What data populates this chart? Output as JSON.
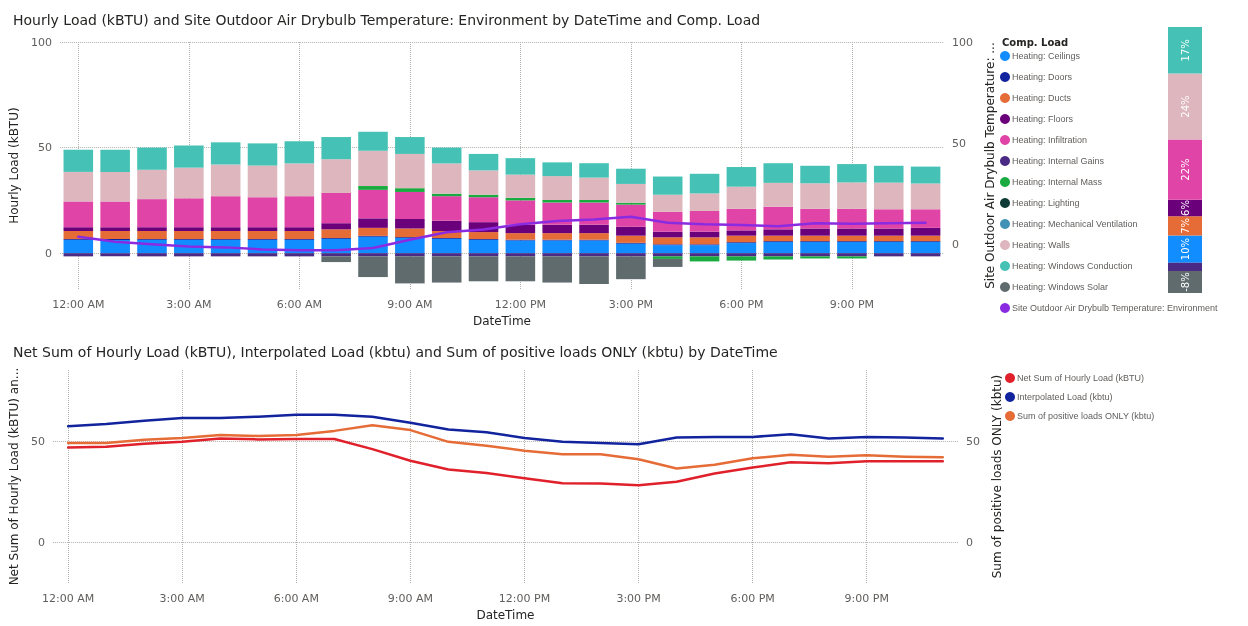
{
  "chart_data": [
    {
      "type": "bar",
      "title": "Hourly Load (kBTU) and Site Outdoor Air Drybulb Temperature: Environment by DateTime and Comp. Load",
      "xlabel": "DateTime",
      "ylabel": "Hourly Load (kBTU)",
      "y2label": "Site Outdoor Air Drybulb Temperature: ...",
      "legend_title": "Comp. Load",
      "stacked": true,
      "grid": true,
      "legend": "right",
      "marker": "none",
      "x": [
        0,
        1,
        2,
        3,
        4,
        5,
        6,
        7,
        8,
        9,
        10,
        11,
        12,
        13,
        14,
        15,
        16,
        17,
        18,
        19,
        20,
        21,
        22,
        23
      ],
      "xlim": [
        -0.5,
        23.5
      ],
      "xticks": [
        {
          "value": 0,
          "label": "12:00 AM"
        },
        {
          "value": 3,
          "label": "3:00 AM"
        },
        {
          "value": 6,
          "label": "6:00 AM"
        },
        {
          "value": 9,
          "label": "9:00 AM"
        },
        {
          "value": 12,
          "label": "12:00 PM"
        },
        {
          "value": 15,
          "label": "3:00 PM"
        },
        {
          "value": 18,
          "label": "6:00 PM"
        },
        {
          "value": 21,
          "label": "9:00 PM"
        }
      ],
      "ylim": [
        -17,
        100
      ],
      "yticks": [
        0,
        50,
        100
      ],
      "y2lim": [
        -22,
        100
      ],
      "y2ticks": [
        0,
        50,
        100
      ],
      "series": [
        {
          "name": "Heating: Ceilings",
          "color": "#118dff",
          "values": [
            6.3,
            6.3,
            6.3,
            6.3,
            6.3,
            6.3,
            6.3,
            6.8,
            7.8,
            7.2,
            6.8,
            6.3,
            6,
            6,
            6,
            4.5,
            3.8,
            3.8,
            4.8,
            5.3,
            5.3,
            5.3,
            5.3,
            5.3
          ]
        },
        {
          "name": "Heating: Doors",
          "color": "#12239e",
          "values": [
            0.4,
            0.4,
            0.4,
            0.4,
            0.4,
            0.4,
            0.4,
            0.4,
            0.4,
            0.4,
            0.4,
            0.4,
            0.4,
            0.4,
            0.4,
            0.4,
            0.4,
            0.4,
            0.4,
            0.4,
            0.4,
            0.4,
            0.4,
            0.4
          ]
        },
        {
          "name": "Heating: Ducts",
          "color": "#e66c37",
          "values": [
            3.8,
            3.8,
            3.8,
            3.8,
            3.8,
            3.8,
            3.8,
            4.1,
            3.8,
            4.1,
            3.3,
            3.3,
            3.1,
            3.1,
            3.1,
            3.4,
            3.3,
            3.3,
            3.1,
            2.6,
            2.6,
            2.6,
            2.6,
            2.6
          ]
        },
        {
          "name": "Heating: Floors",
          "color": "#6b007b",
          "values": [
            1.8,
            1.8,
            1.8,
            1.8,
            1.8,
            1.8,
            1.8,
            2.9,
            4.5,
            4.5,
            4.9,
            4.7,
            4,
            4,
            4,
            4.2,
            2.7,
            2.7,
            2.5,
            3,
            3.4,
            3.4,
            3.4,
            3.7
          ]
        },
        {
          "name": "Heating: Infiltration",
          "color": "#e044a7",
          "values": [
            12.2,
            12.2,
            13.3,
            13.7,
            14.7,
            14.2,
            14.7,
            14.3,
            13.5,
            12.8,
            11.6,
            11.8,
            11.5,
            10.5,
            10.5,
            10.5,
            9.4,
            9.8,
            10.2,
            10.7,
            9.3,
            9.3,
            9.1,
            8.8
          ]
        },
        {
          "name": "Heating: Internal Gains",
          "color": "#4a2a85",
          "values": [
            -1.5,
            -1.5,
            -1.5,
            -1.5,
            -1.5,
            -1.5,
            -1.5,
            -1.5,
            -1.5,
            -1.5,
            -1.5,
            -1.5,
            -1.5,
            -1.5,
            -1.5,
            -1.5,
            -1.5,
            -1.5,
            -1.5,
            -1.5,
            -1.5,
            -1.5,
            -1.5,
            -1.5
          ]
        },
        {
          "name": "Heating: Internal Mass",
          "color": "#1aab40",
          "values": [
            null,
            null,
            null,
            null,
            null,
            null,
            null,
            null,
            1.8,
            1.8,
            1.2,
            1.2,
            1.2,
            1.2,
            1.2,
            0.9,
            -1.2,
            -2.4,
            -2,
            -1.5,
            -1,
            -1,
            null,
            null
          ]
        },
        {
          "name": "Heating: Lighting",
          "color": "#0f3b36",
          "values": [
            null,
            null,
            null,
            null,
            null,
            null,
            null,
            null,
            null,
            null,
            null,
            null,
            null,
            null,
            null,
            null,
            null,
            null,
            null,
            null,
            null,
            null,
            null,
            null
          ]
        },
        {
          "name": "Heating: Mechanical Ventilation",
          "color": "#4091b5",
          "values": [
            null,
            null,
            null,
            null,
            null,
            null,
            null,
            null,
            null,
            null,
            null,
            null,
            null,
            null,
            null,
            null,
            null,
            null,
            null,
            null,
            null,
            null,
            null,
            null
          ]
        },
        {
          "name": "Heating: Walls",
          "color": "#deb6bd",
          "values": [
            14,
            14,
            13.9,
            14.5,
            15,
            15,
            15.5,
            16,
            16.7,
            16.2,
            14.3,
            11.5,
            11,
            11.3,
            10.6,
            8.9,
            8.1,
            8.3,
            10.5,
            11.3,
            12.1,
            12.5,
            12.6,
            12.2
          ]
        },
        {
          "name": "Heating: Windows Conduction",
          "color": "#45c2b5",
          "values": [
            10.5,
            10.5,
            10.5,
            10.5,
            10.5,
            10.5,
            10.5,
            10.5,
            9,
            8,
            7.5,
            7.8,
            7.8,
            6.5,
            6.8,
            7.2,
            8.6,
            9.3,
            9.3,
            9.3,
            8.3,
            8.7,
            8,
            8
          ]
        },
        {
          "name": "Heating: Windows Solar",
          "color": "#5f6b6d",
          "values": [
            null,
            null,
            null,
            null,
            null,
            null,
            null,
            -2.7,
            -9.8,
            -12.8,
            -12.4,
            -11.8,
            -11.8,
            -12.4,
            -13.1,
            -10.8,
            -3.8,
            null,
            null,
            null,
            null,
            null,
            null,
            null
          ]
        },
        {
          "name": "Site Outdoor Air Drybulb Temperature: Environment",
          "type": "line",
          "axis": "y2",
          "color": "#8a2be2",
          "values": [
            3.8,
            1.4,
            0.2,
            -1,
            -1.4,
            -2.4,
            -2.8,
            -2.8,
            -1.7,
            2.4,
            6.1,
            7.4,
            10,
            11.6,
            12.4,
            13.7,
            10.8,
            10,
            9.7,
            9,
            10.5,
            10.3,
            10.5,
            10.8
          ]
        }
      ]
    },
    {
      "type": "bar",
      "stacked": true,
      "tick_labels": false,
      "categories": [
        null
      ],
      "series": [
        {
          "color": "#118dff",
          "values": [
            10
          ],
          "value_labels": [
            "10%"
          ]
        },
        {
          "color": "#e66c37",
          "values": [
            7
          ],
          "value_labels": [
            "7%"
          ]
        },
        {
          "color": "#6b007b",
          "values": [
            6
          ],
          "value_labels": [
            "6%"
          ]
        },
        {
          "color": "#e044a7",
          "values": [
            22
          ],
          "value_labels": [
            "22%"
          ]
        },
        {
          "color": "#deb6bd",
          "values": [
            24
          ],
          "value_labels": [
            "24%"
          ]
        },
        {
          "color": "#45c2b5",
          "values": [
            17
          ],
          "value_labels": [
            "17%"
          ]
        },
        {
          "color": "#4a2a85",
          "values": [
            -3
          ],
          "value_labels": [
            null
          ]
        },
        {
          "color": "#5f6b6d",
          "values": [
            -8
          ],
          "value_labels": [
            "-8%"
          ]
        }
      ]
    },
    {
      "type": "line",
      "title": "Net Sum of Hourly Load (kBTU), Interpolated Load (kbtu) and Sum of positive loads ONLY (kbtu) by DateTime",
      "xlabel": "DateTime",
      "ylabel": "Net Sum of Hourly Load (kBTU) an...",
      "y2label": "Sum of positive loads ONLY (kbtu)",
      "grid": true,
      "legend": "top right",
      "marker": "none",
      "x": [
        0,
        1,
        2,
        3,
        4,
        5,
        6,
        7,
        8,
        9,
        10,
        11,
        12,
        13,
        14,
        15,
        16,
        17,
        18,
        19,
        20,
        21,
        22,
        23
      ],
      "xlim": [
        -0.4,
        23.4
      ],
      "xticks": [
        {
          "value": 0,
          "label": "12:00 AM"
        },
        {
          "value": 3,
          "label": "3:00 AM"
        },
        {
          "value": 6,
          "label": "6:00 AM"
        },
        {
          "value": 9,
          "label": "9:00 AM"
        },
        {
          "value": 12,
          "label": "12:00 PM"
        },
        {
          "value": 15,
          "label": "3:00 PM"
        },
        {
          "value": 18,
          "label": "6:00 PM"
        },
        {
          "value": 21,
          "label": "9:00 PM"
        }
      ],
      "ylim": [
        -20,
        85
      ],
      "yticks": [
        0,
        50
      ],
      "y2lim": [
        -20,
        85
      ],
      "y2ticks": [
        0,
        50
      ],
      "series": [
        {
          "name": "Net Sum of Hourly Load (kBTU)",
          "color": "#e0202a",
          "values": [
            46.8,
            47.2,
            48.7,
            49.6,
            51.2,
            50.8,
            51,
            51,
            46,
            40.3,
            36,
            34.2,
            31.7,
            29.2,
            29.1,
            28.2,
            29.9,
            34,
            37,
            39.5,
            39,
            40,
            40,
            40
          ]
        },
        {
          "name": "Interpolated Load (kbtu)",
          "color": "#12239e",
          "values": [
            57.3,
            58.4,
            60,
            61.4,
            61.4,
            62,
            63,
            63,
            62,
            59,
            55.7,
            54.3,
            51.5,
            49.6,
            49,
            48.4,
            51.7,
            52,
            52,
            53.4,
            51.3,
            52,
            51.7,
            51.3
          ]
        },
        {
          "name": "Sum of positive loads ONLY (kbtu)",
          "axis": "y2",
          "color": "#e66c37",
          "values": [
            49,
            49,
            50.6,
            51.5,
            53,
            52.5,
            53,
            55,
            57.8,
            55.4,
            49.6,
            47.7,
            45.2,
            43.5,
            43.5,
            41,
            36.5,
            38.3,
            41.5,
            43.3,
            42.3,
            43,
            42.3,
            42
          ]
        }
      ]
    }
  ]
}
